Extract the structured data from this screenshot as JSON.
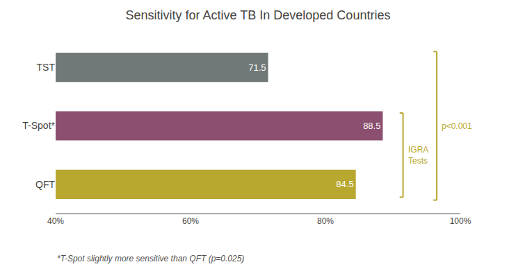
{
  "chart_data": {
    "type": "bar",
    "orientation": "horizontal",
    "title": "Sensitivity for Active TB In Developed Countries",
    "categories": [
      "TST",
      "T-Spot*",
      "QFT"
    ],
    "values": [
      71.5,
      88.5,
      84.5
    ],
    "colors": [
      "#707878",
      "#8B5070",
      "#B8A830"
    ],
    "data_labels": true,
    "xlim": [
      40,
      100
    ],
    "xticks": [
      {
        "value": 40,
        "label": "40%"
      },
      {
        "value": 60,
        "label": "60%"
      },
      {
        "value": 80,
        "label": "80%"
      },
      {
        "value": 100,
        "label": "100%"
      }
    ],
    "grid": false,
    "annotations": [
      "IGRA\nTests",
      "p<0.001",
      "*T-Spot slightly more sensitive than QFT (p=0.025)"
    ]
  }
}
